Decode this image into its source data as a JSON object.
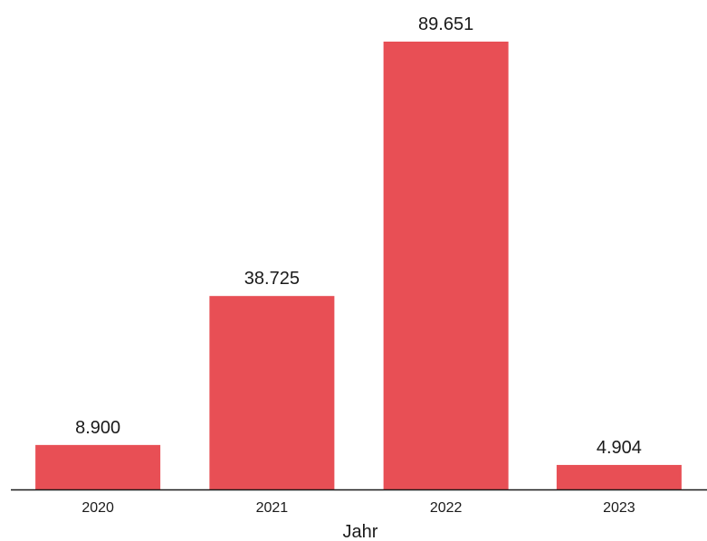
{
  "chart_data": {
    "type": "bar",
    "categories": [
      "2020",
      "2021",
      "2022",
      "2023"
    ],
    "values": [
      8900,
      38725,
      89651,
      4904
    ],
    "value_labels": [
      "8.900",
      "38.725",
      "89.651",
      "4.904"
    ],
    "xlabel": "Jahr",
    "ylabel": "",
    "ylim": [
      0,
      100000
    ],
    "grid": false,
    "bar_color": "#e84f55",
    "axis_color": "#1a1a1a"
  }
}
